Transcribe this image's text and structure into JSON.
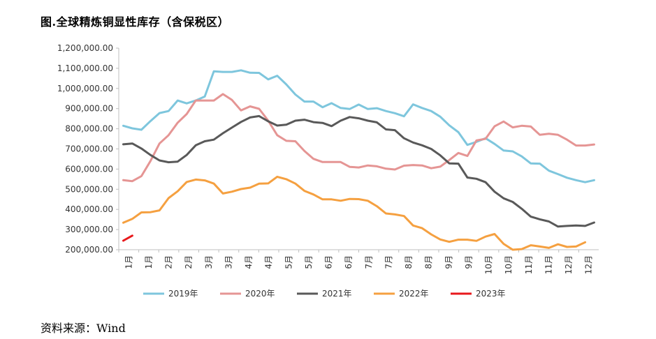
{
  "title": "图.全球精炼铜显性库存（含保税区）",
  "source": "资料来源：Wind",
  "chart_data": {
    "type": "line",
    "title": "图.全球精炼铜显性库存（含保税区）",
    "xlabel": "",
    "ylabel": "",
    "ylim": [
      200000,
      1200000
    ],
    "yticks": [
      "1,200,000.00",
      "1,100,000.00",
      "1,000,000.00",
      "900,000.00",
      "800,000.00",
      "700,000.00",
      "600,000.00",
      "500,000.00",
      "400,000.00",
      "300,000.00",
      "200,000.00"
    ],
    "xticks": [
      "1月",
      "1月",
      "2月",
      "2月",
      "3月",
      "3月",
      "4月",
      "4月",
      "5月",
      "5月",
      "6月",
      "6月",
      "7月",
      "7月",
      "8月",
      "8月",
      "9月",
      "9月",
      "10月",
      "10月",
      "11月",
      "11月",
      "12月",
      "12月"
    ],
    "grid": false,
    "legend_position": "bottom",
    "series": [
      {
        "name": "2019年",
        "color": "#7ec6dd",
        "values": [
          815000,
          802000,
          795000,
          838000,
          878000,
          888000,
          940000,
          926000,
          940000,
          960000,
          1085000,
          1082000,
          1082000,
          1090000,
          1078000,
          1077000,
          1045000,
          1063000,
          1020000,
          970000,
          935000,
          935000,
          907000,
          927000,
          903000,
          898000,
          920000,
          898000,
          902000,
          888000,
          877000,
          862000,
          921000,
          903000,
          888000,
          860000,
          817000,
          783000,
          720000,
          735000,
          753000,
          725000,
          692000,
          688000,
          663000,
          628000,
          627000,
          592000,
          575000,
          557000,
          545000,
          535000,
          545000
        ]
      },
      {
        "name": "2020年",
        "color": "#e59594",
        "values": [
          545000,
          540000,
          565000,
          640000,
          727000,
          768000,
          830000,
          873000,
          940000,
          940000,
          940000,
          972000,
          943000,
          891000,
          911000,
          899000,
          840000,
          768000,
          740000,
          738000,
          690000,
          651000,
          635000,
          635000,
          635000,
          611000,
          608000,
          618000,
          614000,
          602000,
          598000,
          617000,
          620000,
          618000,
          604000,
          612000,
          645000,
          680000,
          665000,
          742000,
          750000,
          812000,
          836000,
          807000,
          815000,
          811000,
          770000,
          775000,
          770000,
          746000,
          717000,
          717000,
          722000
        ]
      },
      {
        "name": "2021年",
        "color": "#595959",
        "values": [
          723000,
          727000,
          702000,
          670000,
          643000,
          634000,
          637000,
          670000,
          718000,
          738000,
          746000,
          778000,
          806000,
          834000,
          856000,
          863000,
          837000,
          816000,
          820000,
          840000,
          845000,
          833000,
          829000,
          813000,
          840000,
          858000,
          852000,
          840000,
          832000,
          797000,
          793000,
          753000,
          732000,
          718000,
          700000,
          668000,
          628000,
          627000,
          558000,
          552000,
          535000,
          488000,
          455000,
          437000,
          403000,
          364000,
          351000,
          340000,
          315000,
          318000,
          320000,
          318000,
          335000
        ]
      },
      {
        "name": "2022年",
        "color": "#f5a040",
        "values": [
          334000,
          353000,
          385000,
          386000,
          395000,
          456000,
          490000,
          536000,
          548000,
          544000,
          528000,
          479000,
          488000,
          501000,
          508000,
          528000,
          529000,
          562000,
          550000,
          528000,
          492000,
          474000,
          450000,
          450000,
          443000,
          452000,
          451000,
          443000,
          416000,
          380000,
          375000,
          367000,
          320000,
          307000,
          276000,
          251000,
          239000,
          250000,
          250000,
          244000,
          265000,
          278000,
          229000,
          200000,
          203000,
          222000,
          216000,
          209000,
          227000,
          214000,
          216000,
          237000
        ]
      },
      {
        "name": "2023年",
        "color": "#e8191c",
        "values": [
          245000,
          270000
        ]
      }
    ]
  }
}
